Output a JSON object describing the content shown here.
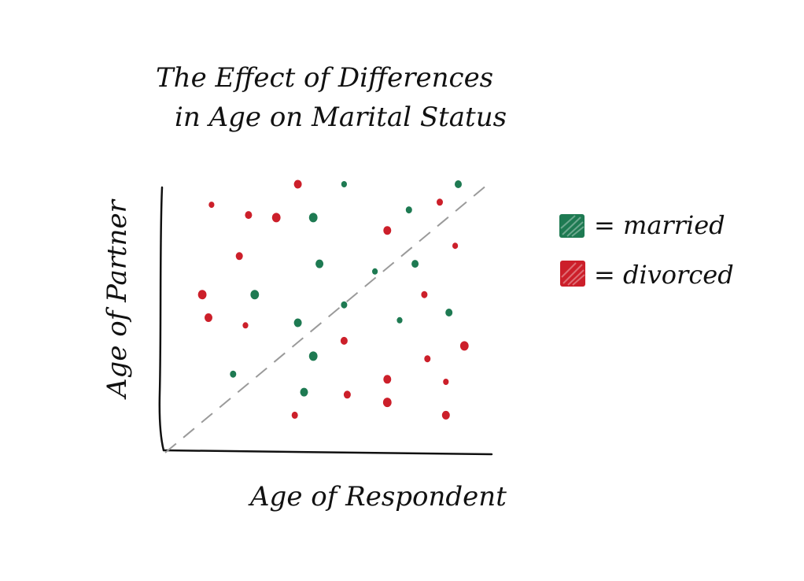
{
  "chart_data": {
    "type": "scatter",
    "title_line1": "The Effect of Differences",
    "title_line2": "in Age on Marital Status",
    "xlabel": "Age of Respondent",
    "ylabel": "Age of Partner",
    "xlim": [
      0,
      100
    ],
    "ylim": [
      0,
      100
    ],
    "grid": false,
    "legend_position": "right",
    "reference_line": {
      "type": "diagonal",
      "style": "dashed",
      "color": "#9a9a9a"
    },
    "series": [
      {
        "name": "married",
        "color": "#1e7a52",
        "points": [
          [
            57,
            100
          ],
          [
            94,
            100
          ],
          [
            47,
            87
          ],
          [
            78,
            90
          ],
          [
            49,
            69
          ],
          [
            67,
            66
          ],
          [
            80,
            69
          ],
          [
            28,
            57
          ],
          [
            57,
            53
          ],
          [
            42,
            46
          ],
          [
            75,
            47
          ],
          [
            91,
            50
          ],
          [
            47,
            33
          ],
          [
            21,
            26
          ],
          [
            44,
            19
          ]
        ]
      },
      {
        "name": "divorced",
        "color": "#cc1f2a",
        "points": [
          [
            42,
            100
          ],
          [
            14,
            92
          ],
          [
            26,
            88
          ],
          [
            35,
            87
          ],
          [
            88,
            93
          ],
          [
            71,
            82
          ],
          [
            93,
            76
          ],
          [
            23,
            72
          ],
          [
            11,
            57
          ],
          [
            83,
            57
          ],
          [
            13,
            48
          ],
          [
            25,
            45
          ],
          [
            57,
            39
          ],
          [
            96,
            37
          ],
          [
            84,
            32
          ],
          [
            71,
            24
          ],
          [
            90,
            23
          ],
          [
            58,
            18
          ],
          [
            71,
            15
          ],
          [
            41,
            10
          ],
          [
            90,
            10
          ]
        ]
      }
    ],
    "legend": [
      {
        "label": "= married",
        "color": "#1e7a52"
      },
      {
        "label": "= divorced",
        "color": "#cc1f2a"
      }
    ]
  }
}
